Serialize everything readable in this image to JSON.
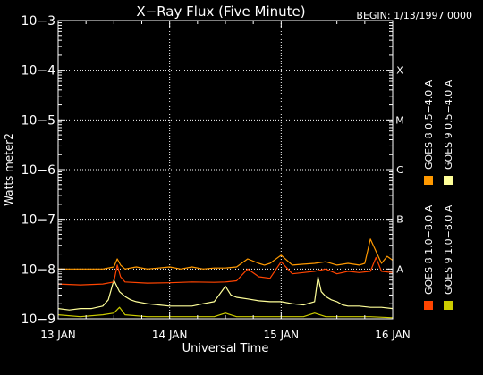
{
  "chart_data": {
    "type": "line",
    "title": "X−Ray Flux (Five Minute)",
    "begin_label": "BEGIN: 1/13/1997 0000",
    "xlabel": "Universal Time",
    "ylabel": "Watts meter2",
    "yscale": "log",
    "ylim": [
      1e-09,
      0.001
    ],
    "xlim": [
      0,
      3
    ],
    "x_ticks": [
      {
        "x": 0,
        "label": "13 JAN"
      },
      {
        "x": 1,
        "label": "14 JAN"
      },
      {
        "x": 2,
        "label": "15 JAN"
      },
      {
        "x": 3,
        "label": "16 JAN"
      }
    ],
    "y_ticks": [
      {
        "exp": -9,
        "label": "10−9"
      },
      {
        "exp": -8,
        "label": "10−8"
      },
      {
        "exp": -7,
        "label": "10−7"
      },
      {
        "exp": -6,
        "label": "10−6"
      },
      {
        "exp": -5,
        "label": "10−5"
      },
      {
        "exp": -4,
        "label": "10−4"
      },
      {
        "exp": -3,
        "label": "10−3"
      }
    ],
    "class_labels": [
      {
        "exp": -8,
        "label": "A"
      },
      {
        "exp": -7,
        "label": "B"
      },
      {
        "exp": -6,
        "label": "C"
      },
      {
        "exp": -5,
        "label": "M"
      },
      {
        "exp": -4,
        "label": "X"
      }
    ],
    "grid": "dotted",
    "series": [
      {
        "name": "GOES 9 0.5−4.0 A",
        "color": "#ffff99",
        "x": [
          0,
          0.1,
          0.2,
          0.3,
          0.4,
          0.45,
          0.5,
          0.55,
          0.6,
          0.65,
          0.7,
          0.8,
          0.9,
          1.0,
          1.1,
          1.2,
          1.3,
          1.4,
          1.5,
          1.55,
          1.6,
          1.65,
          1.7,
          1.8,
          1.9,
          2.0,
          2.1,
          2.2,
          2.3,
          2.33,
          2.36,
          2.4,
          2.45,
          2.5,
          2.55,
          2.6,
          2.7,
          2.8,
          2.9,
          3.0
        ],
        "y": [
          1.6e-09,
          1.5e-09,
          1.6e-09,
          1.6e-09,
          1.8e-09,
          2.4e-09,
          6e-09,
          3.5e-09,
          2.8e-09,
          2.4e-09,
          2.2e-09,
          2e-09,
          1.9e-09,
          1.8e-09,
          1.8e-09,
          1.8e-09,
          2e-09,
          2.2e-09,
          4.5e-09,
          3e-09,
          2.7e-09,
          2.6e-09,
          2.5e-09,
          2.3e-09,
          2.2e-09,
          2.2e-09,
          2e-09,
          1.9e-09,
          2.2e-09,
          7e-09,
          3.5e-09,
          2.8e-09,
          2.4e-09,
          2.2e-09,
          1.9e-09,
          1.8e-09,
          1.8e-09,
          1.7e-09,
          1.7e-09,
          1.6e-09
        ]
      },
      {
        "name": "GOES 9 1.0−8.0 A",
        "color": "#cccc00",
        "x": [
          0,
          0.2,
          0.4,
          0.5,
          0.55,
          0.6,
          0.8,
          1.0,
          1.2,
          1.4,
          1.5,
          1.6,
          1.8,
          2.0,
          2.2,
          2.3,
          2.4,
          2.6,
          2.8,
          3.0
        ],
        "y": [
          1.2e-09,
          1.1e-09,
          1.2e-09,
          1.3e-09,
          1.7e-09,
          1.2e-09,
          1.1e-09,
          1.1e-09,
          1.1e-09,
          1.1e-09,
          1.3e-09,
          1.1e-09,
          1.1e-09,
          1.1e-09,
          1.1e-09,
          1.3e-09,
          1.1e-09,
          1.1e-09,
          1.1e-09,
          1.05e-09
        ]
      },
      {
        "name": "GOES 8 0.5−4.0 A",
        "color": "#ff9900",
        "x": [
          0,
          0.2,
          0.4,
          0.5,
          0.53,
          0.56,
          0.6,
          0.7,
          0.8,
          0.9,
          1.0,
          1.1,
          1.2,
          1.3,
          1.4,
          1.5,
          1.6,
          1.7,
          1.8,
          1.85,
          1.9,
          2.0,
          2.1,
          2.2,
          2.3,
          2.4,
          2.5,
          2.6,
          2.7,
          2.75,
          2.8,
          2.9,
          2.95,
          3.0
        ],
        "y": [
          1e-08,
          1e-08,
          1e-08,
          1.1e-08,
          1.6e-08,
          1.2e-08,
          1e-08,
          1.1e-08,
          1e-08,
          1.05e-08,
          1.1e-08,
          1e-08,
          1.1e-08,
          1e-08,
          1.05e-08,
          1.05e-08,
          1.1e-08,
          1.6e-08,
          1.3e-08,
          1.2e-08,
          1.3e-08,
          1.9e-08,
          1.2e-08,
          1.25e-08,
          1.3e-08,
          1.4e-08,
          1.2e-08,
          1.3e-08,
          1.2e-08,
          1.3e-08,
          4e-08,
          1.3e-08,
          1.8e-08,
          1.5e-08
        ]
      },
      {
        "name": "GOES 8 1.0−8.0 A",
        "color": "#ff4400",
        "x": [
          0,
          0.2,
          0.4,
          0.5,
          0.53,
          0.56,
          0.6,
          0.8,
          1.0,
          1.2,
          1.4,
          1.5,
          1.6,
          1.7,
          1.8,
          1.9,
          2.0,
          2.1,
          2.2,
          2.3,
          2.4,
          2.5,
          2.6,
          2.7,
          2.8,
          2.85,
          2.9,
          3.0
        ],
        "y": [
          5e-09,
          4.8e-09,
          5e-09,
          5.5e-09,
          1.2e-08,
          7e-09,
          5.5e-09,
          5.2e-09,
          5.3e-09,
          5.5e-09,
          5.4e-09,
          5.5e-09,
          5.8e-09,
          1e-08,
          7e-09,
          6.5e-09,
          1.4e-08,
          8e-09,
          8.5e-09,
          9e-09,
          1e-08,
          8e-09,
          9e-09,
          8.5e-09,
          9e-09,
          1.7e-08,
          9e-09,
          8.5e-09
        ]
      }
    ]
  }
}
